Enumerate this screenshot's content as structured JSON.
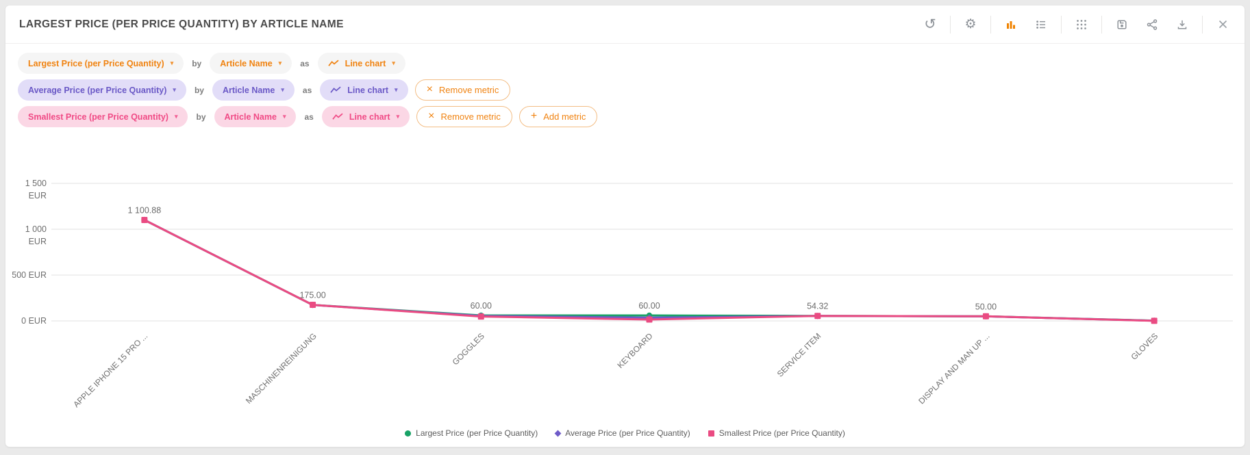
{
  "header": {
    "title": "LARGEST PRICE (PER PRICE QUANTITY) BY ARTICLE NAME",
    "toolbar": {
      "accent": "#f08300",
      "icon_color": "#8e9399",
      "active": "bar-chart",
      "groups": [
        [
          "refresh"
        ],
        [
          "settings"
        ],
        [
          "bar-chart",
          "list-view"
        ],
        [
          "grid-view"
        ],
        [
          "save",
          "share",
          "download"
        ],
        [
          "close"
        ]
      ]
    }
  },
  "builder": {
    "by_label": "by",
    "as_label": "as",
    "remove_label": "Remove metric",
    "add_label": "Add metric",
    "rows": [
      {
        "metric": "Largest Price (per Price Quantity)",
        "dimension": "Article Name",
        "chart_type": "Line chart",
        "text_color": "#f0820f",
        "chip_bg": "#f5f5f5",
        "actions": []
      },
      {
        "metric": "Average Price (per Price Quantity)",
        "dimension": "Article Name",
        "chart_type": "Line chart",
        "text_color": "#6a58c6",
        "chip_bg": "#e2ddf8",
        "actions": [
          "remove"
        ]
      },
      {
        "metric": "Smallest Price (per Price Quantity)",
        "dimension": "Article Name",
        "chart_type": "Line chart",
        "text_color": "#f04a85",
        "chip_bg": "#fbd7e5",
        "actions": [
          "remove",
          "add"
        ]
      }
    ]
  },
  "chart_data": {
    "type": "line",
    "title": "Largest Price (per Price Quantity) by Article Name",
    "xlabel": "",
    "ylabel": "",
    "unit": "EUR",
    "ylim": [
      0,
      1500
    ],
    "grid": true,
    "legend_position": "bottom",
    "x_label_rotation": -45,
    "categories": [
      "APPLE IPHONE 15 PRO ...",
      "MASCHINENREINIGUNG",
      "GOGGLES",
      "KEYBOARD",
      "SERVICE ITEM",
      "DISPLAY AND MAN UP ...",
      "GLOVES"
    ],
    "yticks": [
      {
        "value": 1500,
        "label": "1 500 EUR"
      },
      {
        "value": 1000,
        "label": "1 000 EUR"
      },
      {
        "value": 500,
        "label": "500 EUR"
      },
      {
        "value": 0,
        "label": "0 EUR"
      }
    ],
    "series": [
      {
        "name": "Largest Price (per Price Quantity)",
        "color": "#18a266",
        "symbol": "circle",
        "values": [
          1100.88,
          175.0,
          60.0,
          60.0,
          54.32,
          50.0,
          3.0
        ]
      },
      {
        "name": "Average Price (per Price Quantity)",
        "color": "#6e5bc8",
        "symbol": "diamond",
        "values": [
          1100.88,
          174.0,
          54.0,
          35.0,
          53.5,
          49.5,
          2.0
        ]
      },
      {
        "name": "Smallest Price (per Price Quantity)",
        "color": "#ea4b82",
        "symbol": "square",
        "values": [
          1100.88,
          175.0,
          48.0,
          15.0,
          54.32,
          50.0,
          1.0
        ]
      }
    ],
    "point_labels": [
      "1 100.88",
      "175.00",
      "60.00",
      "60.00",
      "54.32",
      "50.00",
      ""
    ]
  }
}
